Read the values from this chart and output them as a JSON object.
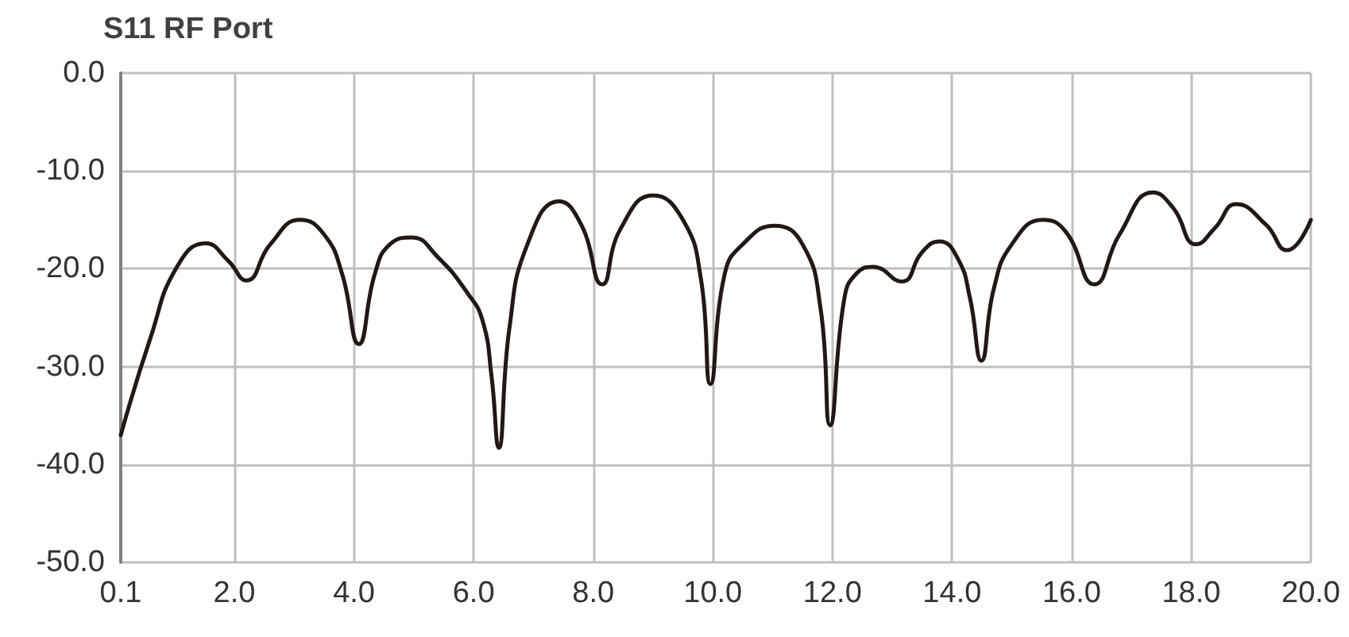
{
  "chart_data": {
    "type": "line",
    "title": "S11 RF Port",
    "x": [
      0.1,
      0.6,
      1.04,
      1.52,
      1.9,
      2.2,
      2.6,
      3.1,
      3.5,
      3.8,
      4.08,
      4.35,
      4.6,
      4.96,
      5.4,
      5.9,
      6.15,
      6.3,
      6.42,
      6.6,
      6.9,
      7.43,
      7.8,
      8.15,
      8.45,
      9.0,
      9.5,
      9.8,
      9.96,
      10.2,
      10.5,
      11.03,
      11.5,
      11.8,
      11.96,
      12.2,
      12.4,
      12.68,
      13.16,
      13.5,
      13.79,
      14.1,
      14.3,
      14.49,
      14.7,
      15.0,
      15.52,
      15.9,
      16.38,
      16.8,
      17.36,
      17.7,
      18.08,
      18.4,
      18.75,
      19.25,
      19.6,
      20.0
    ],
    "series": [
      {
        "color": "#231815",
        "values": [
          -37.0,
          -27.0,
          -19.8,
          -17.4,
          -19.2,
          -21.2,
          -17.5,
          -15.0,
          -16.5,
          -20.5,
          -27.7,
          -20.5,
          -17.5,
          -16.8,
          -18.8,
          -22.5,
          -25.3,
          -31.0,
          -38.3,
          -26.0,
          -17.5,
          -13.1,
          -15.5,
          -21.6,
          -16.0,
          -12.5,
          -15.0,
          -21.0,
          -31.8,
          -20.5,
          -17.5,
          -15.6,
          -17.5,
          -24.0,
          -36.0,
          -23.0,
          -20.5,
          -19.8,
          -21.3,
          -18.3,
          -17.2,
          -19.0,
          -23.0,
          -29.4,
          -22.0,
          -17.5,
          -15.0,
          -16.2,
          -21.6,
          -16.5,
          -12.2,
          -13.8,
          -17.5,
          -15.8,
          -13.4,
          -15.5,
          -18.1,
          -15.0
        ]
      }
    ],
    "xlim": [
      0.1,
      20.0
    ],
    "xticks": [
      0.1,
      {
        "value": 2,
        "label": "2.0"
      },
      {
        "value": 4,
        "label": "4.0"
      },
      {
        "value": 6,
        "label": "6.0"
      },
      {
        "value": 8,
        "label": "8.0"
      },
      {
        "value": 10,
        "label": "10.0"
      },
      {
        "value": 12,
        "label": "12.0"
      },
      {
        "value": 14,
        "label": "14.0"
      },
      {
        "value": 16,
        "label": "16.0"
      },
      {
        "value": 18,
        "label": "18.0"
      },
      {
        "value": 20,
        "label": "20.0"
      }
    ],
    "ylim": [
      -50,
      0
    ],
    "yticks": [
      {
        "value": -50,
        "label": "-50.0"
      },
      {
        "value": -40,
        "label": "-40.0"
      },
      {
        "value": -30,
        "label": "-30.0"
      },
      {
        "value": -20,
        "label": "-20.0"
      },
      {
        "value": -10,
        "label": "-10.0"
      },
      {
        "value": 0,
        "label": "0.0"
      }
    ],
    "grid": true,
    "marker": "none",
    "line_style": "solid"
  }
}
